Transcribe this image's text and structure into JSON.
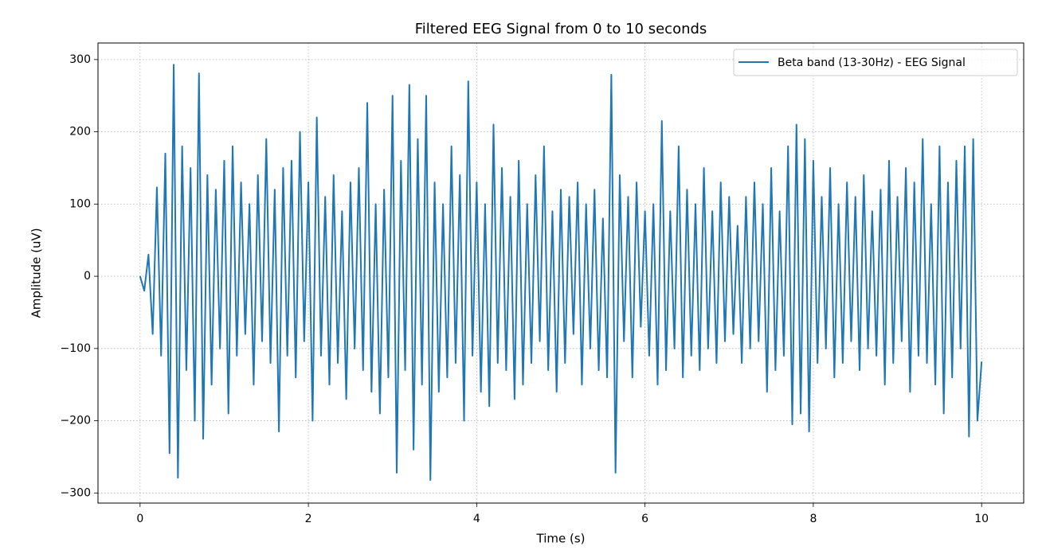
{
  "chart_data": {
    "type": "line",
    "title": "Filtered EEG Signal from 0 to 10 seconds",
    "xlabel": "Time (s)",
    "ylabel": "Amplitude (uV)",
    "x": [
      0,
      0.05,
      0.1,
      0.15,
      0.2,
      0.25,
      0.3,
      0.35,
      0.4,
      0.45,
      0.5,
      0.55,
      0.6,
      0.65,
      0.7,
      0.75,
      0.8,
      0.85,
      0.9,
      0.95,
      1,
      1.05,
      1.1,
      1.15,
      1.2,
      1.25,
      1.3,
      1.35,
      1.4,
      1.45,
      1.5,
      1.55,
      1.6,
      1.65,
      1.7,
      1.75,
      1.8,
      1.85,
      1.9,
      1.95,
      2,
      2.05,
      2.1,
      2.15,
      2.2,
      2.25,
      2.3,
      2.35,
      2.4,
      2.45,
      2.5,
      2.55,
      2.6,
      2.65,
      2.7,
      2.75,
      2.8,
      2.85,
      2.9,
      2.95,
      3,
      3.05,
      3.1,
      3.15,
      3.2,
      3.25,
      3.3,
      3.35,
      3.4,
      3.45,
      3.5,
      3.55,
      3.6,
      3.65,
      3.7,
      3.75,
      3.8,
      3.85,
      3.9,
      3.95,
      4,
      4.05,
      4.1,
      4.15,
      4.2,
      4.25,
      4.3,
      4.35,
      4.4,
      4.45,
      4.5,
      4.55,
      4.6,
      4.65,
      4.7,
      4.75,
      4.8,
      4.85,
      4.9,
      4.95,
      5,
      5.05,
      5.1,
      5.15,
      5.2,
      5.25,
      5.3,
      5.35,
      5.4,
      5.45,
      5.5,
      5.55,
      5.6,
      5.65,
      5.7,
      5.75,
      5.8,
      5.85,
      5.9,
      5.95,
      6,
      6.05,
      6.1,
      6.15,
      6.2,
      6.25,
      6.3,
      6.35,
      6.4,
      6.45,
      6.5,
      6.55,
      6.6,
      6.65,
      6.7,
      6.75,
      6.8,
      6.85,
      6.9,
      6.95,
      7,
      7.05,
      7.1,
      7.15,
      7.2,
      7.25,
      7.3,
      7.35,
      7.4,
      7.45,
      7.5,
      7.55,
      7.6,
      7.65,
      7.7,
      7.75,
      7.8,
      7.85,
      7.9,
      7.95,
      8,
      8.05,
      8.1,
      8.15,
      8.2,
      8.25,
      8.3,
      8.35,
      8.4,
      8.45,
      8.5,
      8.55,
      8.6,
      8.65,
      8.7,
      8.75,
      8.8,
      8.85,
      8.9,
      8.95,
      9,
      9.05,
      9.1,
      9.15,
      9.2,
      9.25,
      9.3,
      9.35,
      9.4,
      9.45,
      9.5,
      9.55,
      9.6,
      9.65,
      9.7,
      9.75,
      9.8,
      9.85,
      9.9,
      9.95,
      10
    ],
    "series": [
      {
        "name": "Beta band (13-30Hz) - EEG Signal",
        "color": "#1f77b4",
        "values": [
          0,
          -20,
          30,
          -80,
          123,
          -110,
          170,
          -245,
          293,
          -279,
          180,
          -130,
          150,
          -200,
          281,
          -225,
          140,
          -150,
          120,
          -100,
          160,
          -190,
          180,
          -110,
          130,
          -80,
          100,
          -150,
          140,
          -90,
          190,
          -120,
          120,
          -215,
          150,
          -110,
          160,
          -140,
          200,
          -90,
          130,
          -200,
          220,
          -110,
          110,
          -150,
          140,
          -120,
          90,
          -170,
          130,
          -100,
          150,
          -130,
          240,
          -160,
          100,
          -190,
          120,
          -140,
          250,
          -272,
          160,
          -130,
          265,
          -240,
          190,
          -150,
          250,
          -282,
          130,
          -160,
          100,
          -140,
          180,
          -120,
          140,
          -200,
          270,
          -110,
          130,
          -160,
          100,
          -180,
          210,
          -120,
          150,
          -130,
          110,
          -170,
          160,
          -150,
          100,
          -120,
          140,
          -90,
          180,
          -130,
          90,
          -160,
          120,
          -120,
          110,
          -80,
          130,
          -150,
          100,
          -100,
          120,
          -130,
          80,
          -140,
          279,
          -272,
          140,
          -90,
          110,
          -140,
          130,
          -70,
          90,
          -110,
          100,
          -150,
          215,
          -130,
          90,
          -100,
          180,
          -140,
          120,
          -110,
          100,
          -130,
          150,
          -100,
          90,
          -120,
          130,
          -90,
          110,
          -80,
          70,
          -120,
          110,
          -100,
          130,
          -90,
          100,
          -160,
          150,
          -130,
          90,
          -110,
          180,
          -205,
          210,
          -190,
          190,
          -215,
          160,
          -120,
          110,
          -100,
          150,
          -140,
          100,
          -120,
          130,
          -90,
          110,
          -130,
          140,
          -100,
          90,
          -110,
          120,
          -150,
          160,
          -120,
          110,
          -90,
          150,
          -160,
          130,
          -110,
          190,
          -120,
          100,
          -150,
          180,
          -190,
          130,
          -140,
          160,
          -100,
          180,
          -222,
          190,
          -200,
          -118
        ]
      }
    ],
    "xlim": [
      -0.5,
      10.5
    ],
    "ylim": [
      -314,
      323
    ],
    "xticks": [
      0,
      2,
      4,
      6,
      8,
      10
    ],
    "yticks": [
      {
        "value": -300,
        "label": "−300"
      },
      {
        "value": -200,
        "label": "−200"
      },
      {
        "value": -100,
        "label": "−100"
      },
      0,
      100,
      200,
      300
    ],
    "grid": true,
    "legend": "upper right"
  }
}
